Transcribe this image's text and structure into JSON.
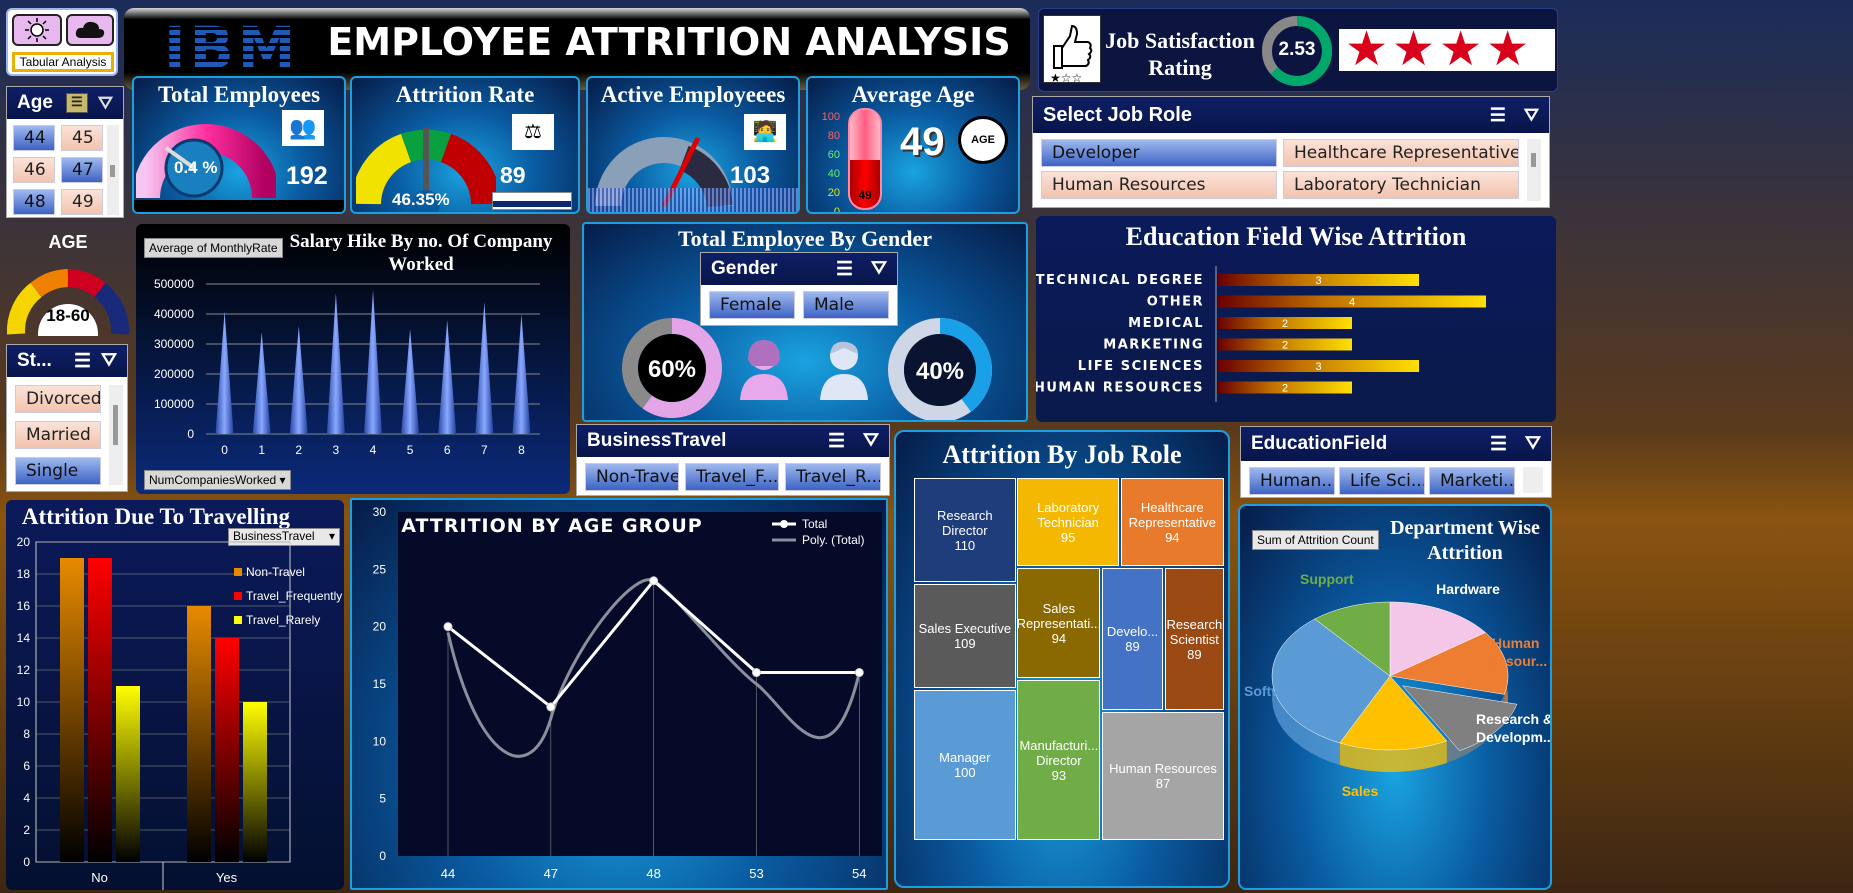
{
  "header": {
    "logo": "IBM",
    "title": "EMPLOYEE ATTRITION ANALYSIS",
    "theme_label": "Tabular Analysis",
    "theme_icons": [
      "sun-icon",
      "cloud-icon"
    ]
  },
  "kpis": {
    "total": {
      "title": "Total Employees",
      "value": "192",
      "gauge": "0.4  %"
    },
    "attrition": {
      "title": "Attrition Rate",
      "value": "89",
      "pct": "46.35%"
    },
    "active": {
      "title": "Active Employeees",
      "value": "103"
    },
    "avg_age": {
      "title": "Average Age",
      "value": "49",
      "thermo_ticks": [
        "100",
        "80",
        "60",
        "40",
        "20",
        "0"
      ],
      "thermo_value": "49",
      "badge": "AGE"
    }
  },
  "job_satisfaction": {
    "title_line1": "Job Satisfaction",
    "title_line2": "Rating",
    "value": "2.53",
    "stars": 3.5
  },
  "slicers": {
    "age": {
      "title": "Age",
      "items": [
        "44",
        "45",
        "46",
        "47",
        "48",
        "49"
      ],
      "selected": [
        "44",
        "47",
        "48"
      ]
    },
    "status": {
      "title": "St...",
      "items": [
        "Divorced",
        "Married",
        "Single"
      ],
      "selected": [
        "Single"
      ]
    },
    "job_role": {
      "title": "Select Job Role",
      "items": [
        "Developer",
        "Healthcare Representative",
        "Human Resources",
        "Laboratory Technician"
      ],
      "selected": [
        "Developer"
      ]
    },
    "gender": {
      "title": "Gender",
      "items": [
        "Female",
        "Male"
      ]
    },
    "business_travel": {
      "title": "BusinessTravel",
      "items": [
        "Non-Travel",
        "Travel_F...",
        "Travel_R..."
      ]
    },
    "education_field": {
      "title": "EducationField",
      "items": [
        "Human...",
        "Life Sci...",
        "Marketi..."
      ]
    }
  },
  "age_gauge": {
    "title": "AGE",
    "value": "18-60"
  },
  "salary_chart": {
    "title_line1": "Salary Hike By no. Of Company",
    "title_line2": "Worked",
    "field_button": "Average of MonthlyRate",
    "axis_button": "NumCompaniesWorked"
  },
  "gender_panel": {
    "title": "Total Employee By Gender",
    "female_pct": "60%",
    "male_pct": "40%"
  },
  "edu_chart": {
    "title": "Education Field Wise Attrition"
  },
  "travel_chart": {
    "title": "Attrition Due To Travelling",
    "filter_button": "BusinessTravel"
  },
  "agegroup_chart": {
    "legend_total": "Total",
    "legend_poly": "Poly. (Total)"
  },
  "jobrole_chart": {
    "title": "Attrition By Job Role"
  },
  "dept_chart": {
    "title_line1": "Department Wise",
    "title_line2": "Attrition",
    "field_button": "Sum of Attrition Count"
  },
  "colors": {
    "accent_blue": "#1a9fe0",
    "navy": "#0b1540",
    "gold": "#f5d000",
    "red": "#e00000"
  },
  "chart_data": [
    {
      "type": "bar",
      "title": "Salary Hike By no. Of Company Worked",
      "categories": [
        "0",
        "1",
        "2",
        "3",
        "4",
        "5",
        "6",
        "7",
        "8"
      ],
      "values": [
        410000,
        340000,
        360000,
        470000,
        480000,
        350000,
        380000,
        440000,
        400000
      ],
      "ylim": [
        0,
        500000
      ],
      "yticks": [
        "0",
        "100000",
        "200000",
        "300000",
        "400000",
        "500000"
      ]
    },
    {
      "type": "bar",
      "title": "Education Field Wise Attrition",
      "categories": [
        "TECHNICAL DEGREE",
        "OTHER",
        "MEDICAL",
        "MARKETING",
        "LIFE SCIENCES",
        "HUMAN RESOURCES"
      ],
      "values": [
        3,
        4,
        2,
        2,
        3,
        2
      ]
    },
    {
      "type": "bar",
      "title": "Attrition Due To Travelling",
      "categories": [
        "No",
        "Yes"
      ],
      "series": [
        {
          "name": "Non-Travel",
          "values": [
            19,
            16
          ]
        },
        {
          "name": "Travel_Frequently",
          "values": [
            19,
            14
          ]
        },
        {
          "name": "Travel_Rarely",
          "values": [
            11,
            10
          ]
        }
      ],
      "ylim": [
        0,
        20
      ],
      "yticks": [
        "0",
        "2",
        "4",
        "6",
        "8",
        "10",
        "12",
        "14",
        "16",
        "18",
        "20"
      ]
    },
    {
      "type": "line",
      "title": "ATTRITION BY AGE GROUP",
      "categories": [
        "44",
        "47",
        "48",
        "53",
        "54"
      ],
      "series": [
        {
          "name": "Total",
          "values": [
            20,
            13,
            24,
            16,
            16
          ]
        },
        {
          "name": "Poly. (Total)",
          "values": [
            19.5,
            14,
            23,
            17,
            15.5
          ]
        }
      ],
      "ylim": [
        0,
        30
      ],
      "yticks": [
        "0",
        "5",
        "10",
        "15",
        "20",
        "25",
        "30"
      ]
    },
    {
      "type": "treemap",
      "title": "Attrition By Job Role",
      "items": [
        {
          "label": "Research Director",
          "value": "110"
        },
        {
          "label": "Laboratory Technician",
          "value": "95"
        },
        {
          "label": "Healthcare Representative",
          "value": "94"
        },
        {
          "label": "Sales Executive",
          "value": "109"
        },
        {
          "label": "Sales Representati...",
          "value": "94"
        },
        {
          "label": "Develo...",
          "value": "89"
        },
        {
          "label": "Research Scientist",
          "value": "89"
        },
        {
          "label": "Manager",
          "value": "100"
        },
        {
          "label": "Manufacturi... Director",
          "value": "93"
        },
        {
          "label": "Human Resources",
          "value": "87"
        }
      ]
    },
    {
      "type": "pie",
      "title": "Department Wise Attrition",
      "categories": [
        "Hardware",
        "Human Resour...",
        "Research & Developm...",
        "Sales",
        "Software",
        "Support"
      ],
      "values": [
        15,
        14,
        13,
        15,
        32,
        11
      ]
    }
  ]
}
